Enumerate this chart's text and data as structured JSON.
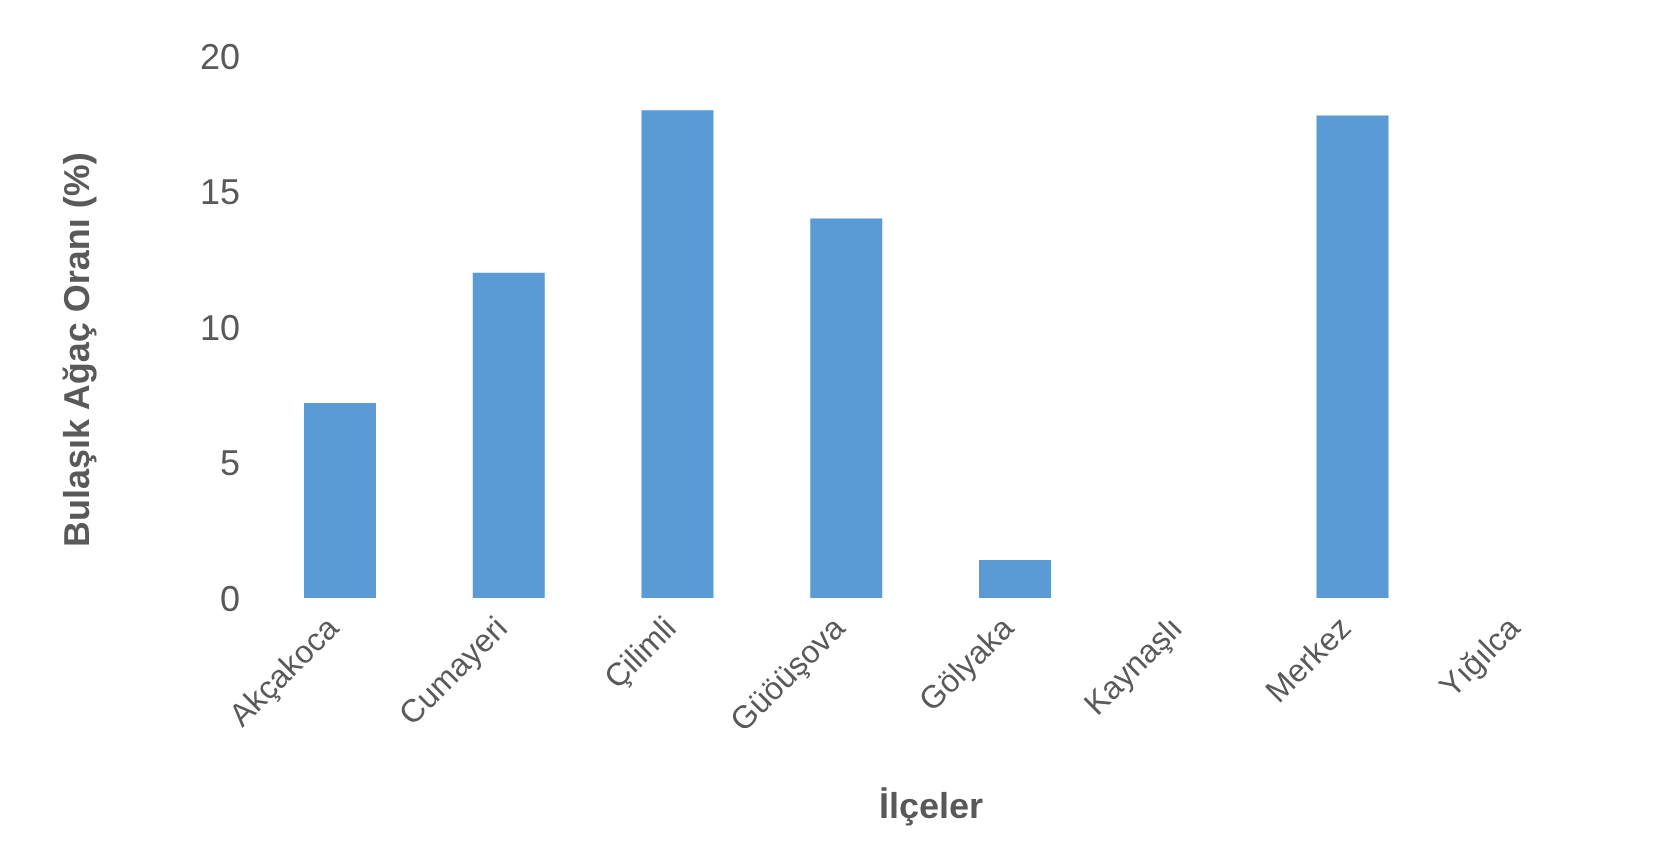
{
  "chart_data": {
    "type": "bar",
    "xlabel": "İlçeler",
    "ylabel": "Bulaşık Ağaç Oranı (%)",
    "categories": [
      "Akçakoca",
      "Cumayeri",
      "Çilimli",
      "Güöüşova",
      "Gölyaka",
      "Kaynaşlı",
      "Merkez",
      "Yığılca"
    ],
    "values": [
      7.2,
      12,
      18,
      14,
      1.4,
      0,
      17.8,
      0
    ],
    "color": "#5b9bd5",
    "ylim": [
      0,
      20
    ],
    "yticks": [
      0,
      5,
      10,
      15,
      20
    ],
    "grid": false,
    "legend": false
  }
}
